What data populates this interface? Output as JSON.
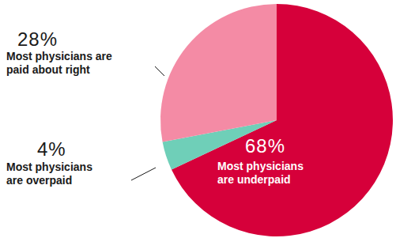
{
  "chart_data": {
    "type": "pie",
    "categories": [
      "Most physicians\nare underpaid",
      "Most physicians\nare overpaid",
      "Most physicians are\npaid about right"
    ],
    "values": [
      68,
      4,
      28
    ],
    "value_labels": [
      "68%",
      "4%",
      "28%"
    ],
    "colors": [
      "#d6003a",
      "#6fcfb8",
      "#f48ba5"
    ],
    "data_labels": true
  }
}
